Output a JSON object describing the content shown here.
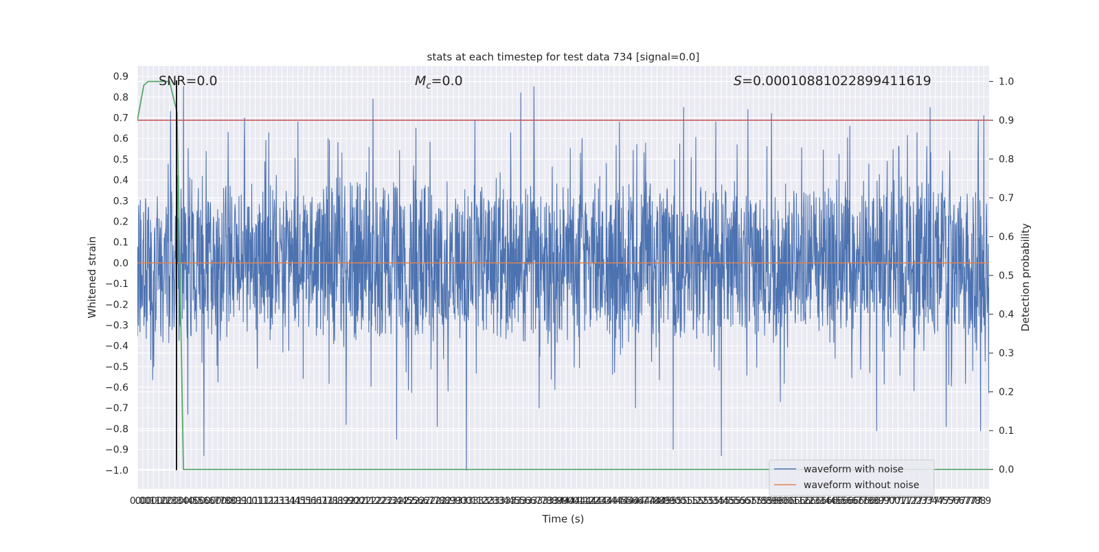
{
  "chart_data": {
    "type": "line",
    "title": "stats at each timestep for test data 734 [signal=0.0]",
    "xlabel": "Time (s)",
    "ylabel_left": "Whitened strain",
    "ylabel_right": "Detection probability",
    "xlim": [
      0.0,
      7.95
    ],
    "ylim_left": [
      -1.09,
      0.95
    ],
    "ylim_right": [
      -0.05,
      1.04
    ],
    "x_ticks": [
      0.0,
      0.05,
      0.1,
      0.15,
      0.2,
      0.25,
      0.3,
      0.35,
      0.4,
      0.45,
      0.5,
      0.55,
      0.6,
      0.65,
      0.7,
      0.75,
      0.8,
      0.85,
      0.9,
      0.95,
      1.0,
      1.05,
      1.1,
      1.15,
      1.2,
      1.25,
      1.3,
      1.35,
      1.4,
      1.45,
      1.5,
      1.55,
      1.6,
      1.65,
      1.7,
      1.75,
      1.8,
      1.85,
      1.9,
      1.95,
      2.0,
      2.05,
      2.1,
      2.15,
      2.2,
      2.25,
      2.3,
      2.35,
      2.4,
      2.45,
      2.5,
      2.55,
      2.6,
      2.65,
      2.7,
      2.75,
      2.8,
      2.85,
      2.9,
      2.95,
      3.0,
      3.05,
      3.1,
      3.15,
      3.2,
      3.25,
      3.3,
      3.35,
      3.4,
      3.45,
      3.5,
      3.55,
      3.6,
      3.65,
      3.7,
      3.75,
      3.8,
      3.85,
      3.9,
      3.95,
      4.0,
      4.05,
      4.1,
      4.15,
      4.2,
      4.25,
      4.3,
      4.35,
      4.4,
      4.45,
      4.5,
      4.55,
      4.6,
      4.65,
      4.7,
      4.75,
      4.8,
      4.85,
      4.9,
      4.95,
      5.0,
      5.05,
      5.1,
      5.15,
      5.2,
      5.25,
      5.3,
      5.35,
      5.4,
      5.45,
      5.5,
      5.55,
      5.6,
      5.65,
      5.7,
      5.75,
      5.8,
      5.85,
      5.9,
      5.95,
      6.0,
      6.05,
      6.1,
      6.15,
      6.2,
      6.25,
      6.3,
      6.35,
      6.4,
      6.45,
      6.5,
      6.55,
      6.6,
      6.65,
      6.7,
      6.75,
      6.8,
      6.85,
      6.9,
      6.95,
      7.0,
      7.05,
      7.1,
      7.15,
      7.2,
      7.25,
      7.3,
      7.35,
      7.4,
      7.45,
      7.5,
      7.55,
      7.6,
      7.65,
      7.7,
      7.75,
      7.8,
      7.85,
      7.9
    ],
    "x_tick_labels": [
      "0.0",
      "0.0",
      "0.1",
      "0.1",
      "0.2",
      "0.2",
      "0.3",
      "0.3",
      "0.4",
      "0.4",
      "0.5",
      "0.5",
      "0.6",
      "0.6",
      "0.7",
      "0.7",
      "0.8",
      "0.8",
      "0.9",
      "0.9",
      "1.0",
      "1.0",
      "1.1",
      "1.1",
      "1.2",
      "1.2",
      "1.3",
      "1.3",
      "1.4",
      "1.4",
      "1.5",
      "1.5",
      "1.6",
      "1.6",
      "1.7",
      "1.7",
      "1.8",
      "1.8",
      "1.9",
      "1.9",
      "2.0",
      "2.0",
      "2.1",
      "2.1",
      "2.2",
      "2.2",
      "2.3",
      "2.3",
      "2.4",
      "2.4",
      "2.5",
      "2.5",
      "2.6",
      "2.6",
      "2.7",
      "2.7",
      "2.8",
      "2.8",
      "2.9",
      "2.9",
      "3.0",
      "3.0",
      "3.1",
      "3.1",
      "3.2",
      "3.2",
      "3.3",
      "3.3",
      "3.4",
      "3.4",
      "3.5",
      "3.5",
      "3.6",
      "3.6",
      "3.7",
      "3.7",
      "3.8",
      "3.8",
      "3.9",
      "3.9",
      "4.0",
      "4.0",
      "4.1",
      "4.1",
      "4.2",
      "4.2",
      "4.3",
      "4.3",
      "4.4",
      "4.4",
      "4.5",
      "4.5",
      "4.6",
      "4.6",
      "4.7",
      "4.7",
      "4.8",
      "4.8",
      "4.9",
      "4.9",
      "5.0",
      "5.0",
      "5.1",
      "5.1",
      "5.2",
      "5.2",
      "5.3",
      "5.3",
      "5.4",
      "5.4",
      "5.5",
      "5.5",
      "5.6",
      "5.6",
      "5.7",
      "5.7",
      "5.8",
      "5.8",
      "5.9",
      "5.9",
      "6.0",
      "6.0",
      "6.1",
      "6.1",
      "6.2",
      "6.2",
      "6.3",
      "6.3",
      "6.4",
      "6.4",
      "6.5",
      "6.5",
      "6.6",
      "6.6",
      "6.7",
      "6.7",
      "6.8",
      "6.8",
      "6.9",
      "6.9",
      "7.0",
      "7.0",
      "7.1",
      "7.1",
      "7.2",
      "7.2",
      "7.3",
      "7.3",
      "7.4",
      "7.4",
      "7.5",
      "7.5",
      "7.6",
      "7.6",
      "7.7",
      "7.7",
      "7.8",
      "7.8",
      "7.9"
    ],
    "y_ticks_left": [
      0.9,
      0.8,
      0.7,
      0.6,
      0.5,
      0.4,
      0.3,
      0.2,
      0.1,
      0.0,
      -0.1,
      -0.2,
      -0.3,
      -0.4,
      -0.5,
      -0.6,
      -0.7,
      -0.8,
      -0.9,
      -1.0
    ],
    "y_tick_labels_left": [
      "0.9",
      "0.8",
      "0.7",
      "0.6",
      "0.5",
      "0.4",
      "0.3",
      "0.2",
      "0.1",
      "0.0",
      "−0.1",
      "−0.2",
      "−0.3",
      "−0.4",
      "−0.5",
      "−0.6",
      "−0.7",
      "−0.8",
      "−0.9",
      "−1.0"
    ],
    "y_ticks_right": [
      1.0,
      0.9,
      0.8,
      0.7,
      0.6,
      0.5,
      0.4,
      0.3,
      0.2,
      0.1,
      0.0
    ],
    "y_tick_labels_right": [
      "1.0",
      "0.9",
      "0.8",
      "0.7",
      "0.6",
      "0.5",
      "0.4",
      "0.3",
      "0.2",
      "0.1",
      "0.0"
    ],
    "annotations": {
      "snr": "SNR=0.0",
      "mc_symbol": "M",
      "mc_sub": "c",
      "mc_value": "=0.0",
      "s_symbol": "S",
      "s_value": "=0.00010881022899411619"
    },
    "legend": {
      "position": "lower right",
      "entries": [
        "waveform with noise",
        "waveform without noise"
      ]
    },
    "grid": true,
    "noise_waveform": {
      "name": "waveform with noise",
      "axis": "left",
      "color": "#4c72b0",
      "typical_range": [
        -0.45,
        0.45
      ],
      "min": -1.0,
      "max": 0.85,
      "peaks": [
        [
          0.31,
          0.73
        ],
        [
          0.43,
          0.85
        ],
        [
          0.47,
          -0.73
        ],
        [
          0.62,
          -0.93
        ],
        [
          1.0,
          0.7
        ],
        [
          1.2,
          0.59
        ],
        [
          1.5,
          0.68
        ],
        [
          1.78,
          0.6
        ],
        [
          1.95,
          -0.78
        ],
        [
          2.2,
          -0.9
        ],
        [
          2.2,
          0.79
        ],
        [
          2.42,
          -0.85
        ],
        [
          2.6,
          0.65
        ],
        [
          2.8,
          -0.79
        ],
        [
          3.07,
          -1.0
        ],
        [
          3.15,
          0.69
        ],
        [
          3.58,
          0.82
        ],
        [
          3.7,
          0.85
        ],
        [
          3.75,
          -0.7
        ],
        [
          4.15,
          0.6
        ],
        [
          4.5,
          0.68
        ],
        [
          4.65,
          -0.7
        ],
        [
          5.0,
          -0.9
        ],
        [
          5.1,
          0.75
        ],
        [
          5.4,
          0.68
        ],
        [
          5.45,
          -0.93
        ],
        [
          5.7,
          0.74
        ],
        [
          5.92,
          0.72
        ],
        [
          6.0,
          -0.67
        ],
        [
          6.65,
          0.66
        ],
        [
          6.9,
          -0.81
        ],
        [
          7.4,
          0.75
        ],
        [
          7.55,
          -0.79
        ],
        [
          7.85,
          0.69
        ],
        [
          7.87,
          -0.81
        ],
        [
          7.9,
          0.71
        ]
      ]
    },
    "clean_waveform": {
      "name": "waveform without noise",
      "axis": "left",
      "color": "#dd8452",
      "value": 0.0
    },
    "detection_probability": {
      "axis": "right",
      "color": "#55a868",
      "points": [
        [
          0.0,
          0.9
        ],
        [
          0.06,
          0.99
        ],
        [
          0.1,
          1.0
        ],
        [
          0.3,
          1.0
        ],
        [
          0.37,
          0.92
        ],
        [
          0.43,
          0.0
        ],
        [
          7.95,
          0.0
        ]
      ]
    },
    "threshold": {
      "axis": "right",
      "color": "#c44e52",
      "value": 0.9
    },
    "vertical_marker": {
      "color": "#000000",
      "x": 0.365,
      "y_from": -1.0,
      "y_to": 0.88
    }
  }
}
